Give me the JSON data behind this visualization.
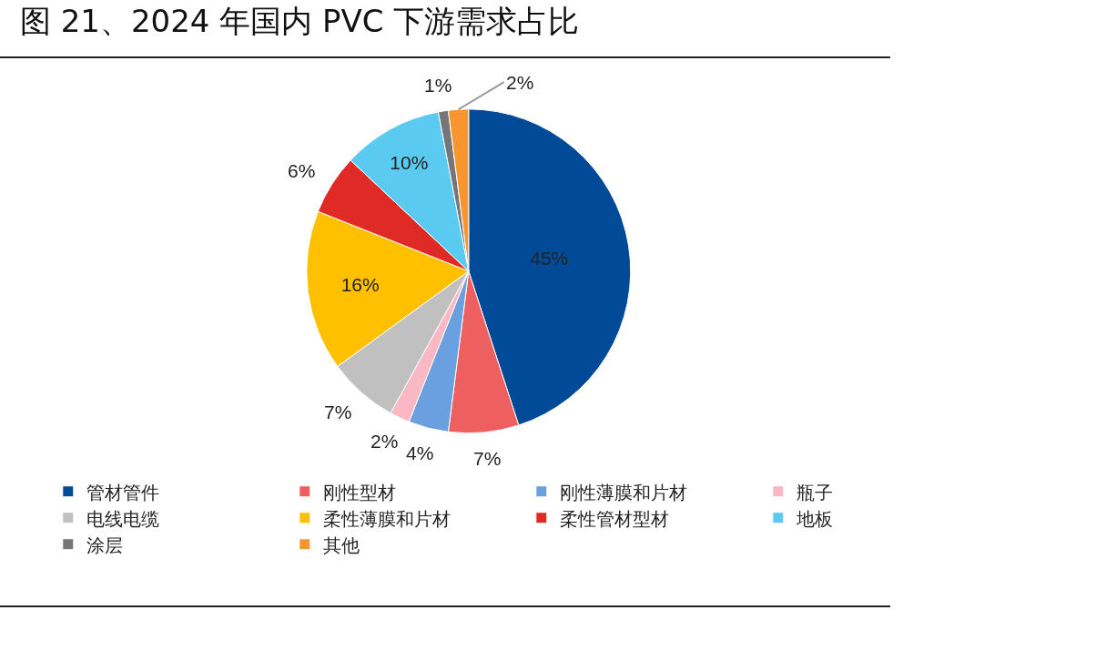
{
  "chart_data": {
    "type": "pie",
    "title": "图 21、2024 年国内 PVC 下游需求占比",
    "categories": [
      "管材管件",
      "刚性型材",
      "刚性薄膜和片材",
      "瓶子",
      "电线电缆",
      "柔性薄膜和片材",
      "柔性管材型材",
      "地板",
      "涂层",
      "其他"
    ],
    "values": [
      45,
      7,
      4,
      2,
      7,
      16,
      6,
      10,
      1,
      2
    ],
    "colors": [
      "#004a97",
      "#ee6060",
      "#6a9fe0",
      "#f9b8c4",
      "#c0c0c0",
      "#ffc000",
      "#e02a26",
      "#5bcaf0",
      "#767676",
      "#f7952e"
    ],
    "value_labels": [
      "45%",
      "7%",
      "4%",
      "2%",
      "7%",
      "16%",
      "6%",
      "10%",
      "1%",
      "2%"
    ],
    "legend": "bottom"
  }
}
